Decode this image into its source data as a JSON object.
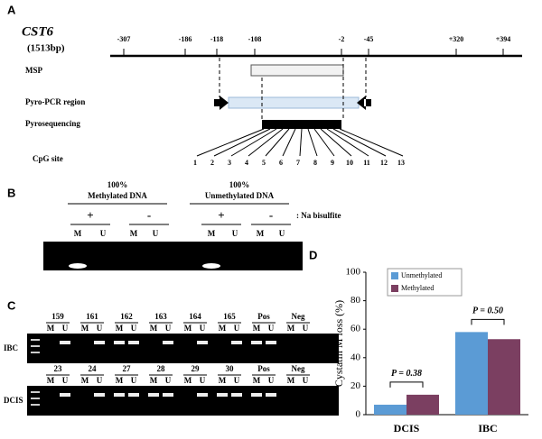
{
  "panel_a": {
    "label": "A",
    "gene": "CST6",
    "length": "(1513bp)",
    "positions": [
      "-307",
      "-186",
      "-118",
      "-108",
      "-2",
      "-45",
      "+320",
      "+394"
    ],
    "rows": [
      "MSP",
      "Pyro-PCR region",
      "Pyrosequencing",
      "CpG site"
    ],
    "cpg_numbers": [
      "1",
      "2",
      "3",
      "4",
      "5",
      "6",
      "7",
      "8",
      "9",
      "10",
      "11",
      "12",
      "13"
    ]
  },
  "panel_b": {
    "label": "B",
    "groups": [
      {
        "percent": "100%",
        "name": "Methylated DNA"
      },
      {
        "percent": "100%",
        "name": "Unmethylated DNA"
      }
    ],
    "treatments": [
      "+",
      "-",
      "+",
      "-"
    ],
    "treatment_label": ": Na bisulfite",
    "lanes": [
      "M",
      "U",
      "M",
      "U",
      "M",
      "U",
      "M",
      "U"
    ]
  },
  "panel_c": {
    "label": "C",
    "gels": [
      {
        "name": "IBC",
        "samples": [
          {
            "label": "159",
            "lanes": [
              "M",
              "U"
            ]
          },
          {
            "label": "161",
            "lanes": [
              "M",
              "U"
            ]
          },
          {
            "label": "162",
            "lanes": [
              "M",
              "U"
            ]
          },
          {
            "label": "163",
            "lanes": [
              "M",
              "U"
            ]
          },
          {
            "label": "164",
            "lanes": [
              "M",
              "U"
            ]
          },
          {
            "label": "165",
            "lanes": [
              "M",
              "U"
            ]
          },
          {
            "label": "Pos",
            "lanes": [
              "M",
              "U"
            ]
          },
          {
            "label": "Neg",
            "lanes": [
              "M",
              "U"
            ]
          }
        ]
      },
      {
        "name": "DCIS",
        "samples": [
          {
            "label": "23",
            "lanes": [
              "M",
              "U"
            ]
          },
          {
            "label": "24",
            "lanes": [
              "M",
              "U"
            ]
          },
          {
            "label": "27",
            "lanes": [
              "M",
              "U"
            ]
          },
          {
            "label": "28",
            "lanes": [
              "M",
              "U"
            ]
          },
          {
            "label": "29",
            "lanes": [
              "M",
              "U"
            ]
          },
          {
            "label": "30",
            "lanes": [
              "M",
              "U"
            ]
          },
          {
            "label": "Pos",
            "lanes": [
              "M",
              "U"
            ]
          },
          {
            "label": "Neg",
            "lanes": [
              "M",
              "U"
            ]
          }
        ]
      }
    ]
  },
  "chart_data": {
    "type": "bar",
    "panel_label": "D",
    "y_label": "Cystatin M loss (%)",
    "categories": [
      "DCIS",
      "IBC"
    ],
    "series": [
      {
        "name": "Unmethylated",
        "color": "#5b9bd5",
        "values": [
          7,
          58
        ]
      },
      {
        "name": "Methylated",
        "color": "#7b3f61",
        "values": [
          14,
          53
        ]
      }
    ],
    "annotations": [
      "P = 0.38",
      "P = 0.50"
    ],
    "ylim": [
      0,
      100
    ],
    "yticks": [
      0,
      20,
      40,
      60,
      80,
      100
    ],
    "legend": "top-left"
  }
}
